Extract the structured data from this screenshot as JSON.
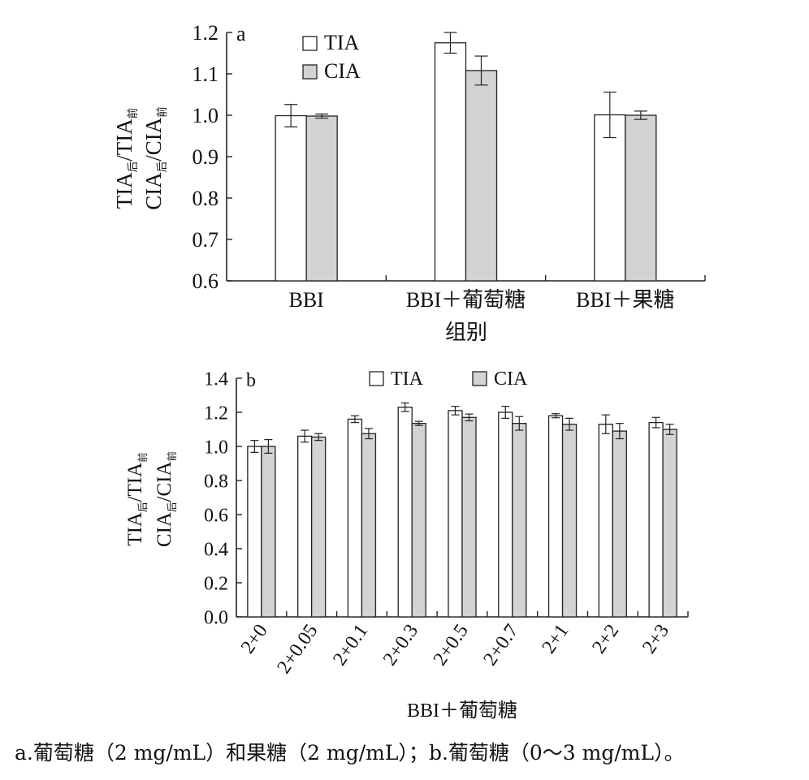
{
  "caption": "a.葡萄糖（2 mg/mL）和果糖（2 mg/mL）；b.葡萄糖（0～3 mg/mL）。",
  "colors": {
    "TIA": "#ffffff",
    "CIA": "#d3d3d3",
    "stroke": "#222222"
  },
  "chart_data": [
    {
      "type": "bar",
      "panel_label": "a",
      "categories": [
        "BBI",
        "BBI＋葡萄糖",
        "BBI＋果糖"
      ],
      "series": [
        {
          "name": "TIA",
          "values": [
            0.999,
            1.175,
            1.001
          ],
          "errors": [
            0.027,
            0.025,
            0.055
          ]
        },
        {
          "name": "CIA",
          "values": [
            0.998,
            1.108,
            1.0
          ],
          "errors": [
            0.005,
            0.035,
            0.01
          ]
        }
      ],
      "xlabel": "组别",
      "ylabel_line1": {
        "base": "TIA",
        "sub1": "后",
        "mid": "/TIA",
        "sub2": "前"
      },
      "ylabel_line2": {
        "base": "CIA",
        "sub1": "后",
        "mid": "/CIA",
        "sub2": "前"
      },
      "ylim": [
        0.6,
        1.2
      ],
      "yticks": [
        "0.6",
        "0.7",
        "0.8",
        "0.9",
        "1.0",
        "1.1",
        "1.2"
      ],
      "grid": false,
      "legend_position": "top-left"
    },
    {
      "type": "bar",
      "panel_label": "b",
      "categories": [
        "2+0",
        "2+0.05",
        "2+0.1",
        "2+0.3",
        "2+0.5",
        "2+0.7",
        "2+1",
        "2+2",
        "2+3"
      ],
      "series": [
        {
          "name": "TIA",
          "values": [
            1.0,
            1.06,
            1.16,
            1.23,
            1.21,
            1.2,
            1.18,
            1.13,
            1.14
          ],
          "errors": [
            0.035,
            0.035,
            0.02,
            0.025,
            0.025,
            0.035,
            0.012,
            0.055,
            0.03
          ]
        },
        {
          "name": "CIA",
          "values": [
            1.0,
            1.055,
            1.075,
            1.135,
            1.17,
            1.135,
            1.13,
            1.09,
            1.1
          ],
          "errors": [
            0.04,
            0.02,
            0.03,
            0.012,
            0.02,
            0.04,
            0.035,
            0.045,
            0.03
          ]
        }
      ],
      "xlabel": "BBI＋葡萄糖",
      "ylabel_line1": {
        "base": "TIA",
        "sub1": "后",
        "mid": "/TIA",
        "sub2": "前"
      },
      "ylabel_line2": {
        "base": "CIA",
        "sub1": "后",
        "mid": "/CIA",
        "sub2": "前"
      },
      "ylim": [
        0.0,
        1.4
      ],
      "yticks": [
        "0.0",
        "0.2",
        "0.4",
        "0.6",
        "0.8",
        "1.0",
        "1.2",
        "1.4"
      ],
      "grid": false,
      "legend_position": "top-center"
    }
  ]
}
